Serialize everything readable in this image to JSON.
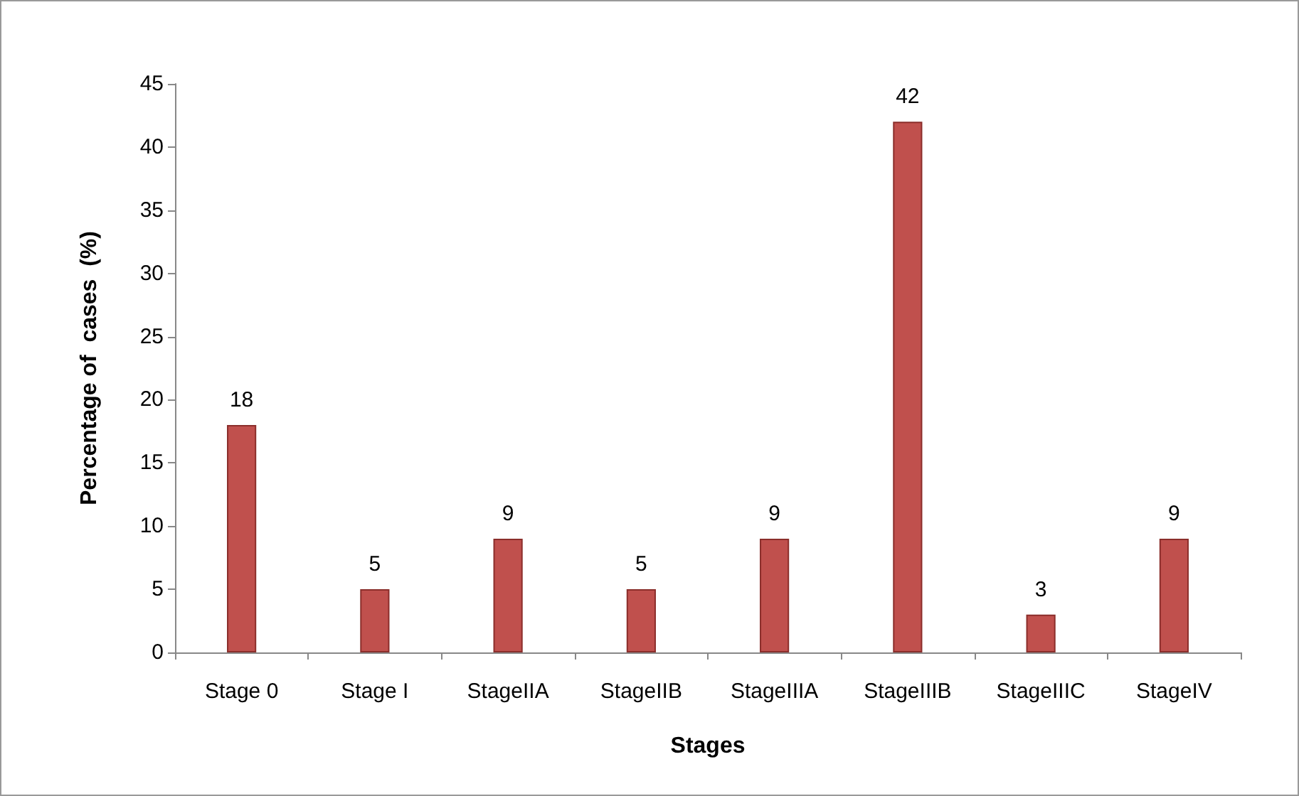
{
  "chart_data": {
    "type": "bar",
    "xlabel": "Stages",
    "ylabel": "Percentage of  cases  (%)",
    "categories": [
      "Stage 0",
      "Stage I",
      "StageIIA",
      "StageIIB",
      "StageIIIA",
      "StageIIIB",
      "StageIIIC",
      "StageIV"
    ],
    "values": [
      18,
      5,
      9,
      5,
      9,
      42,
      3,
      9
    ],
    "color": "#c0504d",
    "ylim": [
      0,
      45
    ],
    "yticks": [
      0,
      5,
      10,
      15,
      20,
      25,
      30,
      35,
      40,
      45
    ],
    "grid": false,
    "data_labels": true
  }
}
